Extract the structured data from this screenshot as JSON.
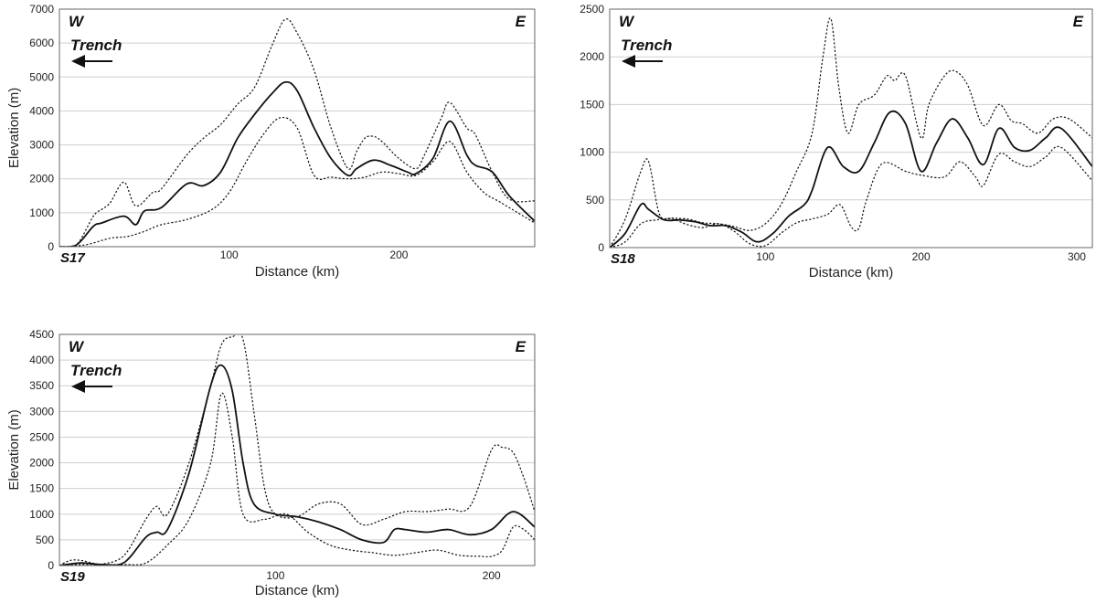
{
  "chart_data": [
    {
      "id": "S17",
      "type": "line",
      "profile_label": "S17",
      "west_label": "W",
      "east_label": "E",
      "trench_label": "Trench",
      "xlabel": "Distance (km)",
      "ylabel": "Elevation (m)",
      "xlim": [
        0,
        280
      ],
      "ylim": [
        0,
        7000
      ],
      "xticks": [
        100,
        200
      ],
      "yticks": [
        0,
        1000,
        2000,
        3000,
        4000,
        5000,
        6000,
        7000
      ],
      "grid": "horizontal",
      "series": [
        {
          "style": "dotted",
          "x": [
            0,
            10,
            20,
            25,
            30,
            38,
            45,
            55,
            60,
            75,
            85,
            95,
            105,
            115,
            125,
            133,
            140,
            150,
            160,
            170,
            175,
            180,
            185,
            190,
            200,
            210,
            215,
            225,
            230,
            240,
            245,
            255,
            265,
            280
          ],
          "y": [
            0,
            50,
            900,
            1100,
            1300,
            1900,
            1200,
            1600,
            1700,
            2700,
            3200,
            3600,
            4200,
            4700,
            5900,
            6700,
            6300,
            5200,
            3500,
            2300,
            2800,
            3200,
            3250,
            3100,
            2600,
            2300,
            2700,
            3800,
            4250,
            3500,
            3300,
            2200,
            1400,
            1350
          ]
        },
        {
          "style": "solid",
          "x": [
            0,
            10,
            20,
            25,
            38,
            45,
            50,
            60,
            75,
            85,
            95,
            105,
            115,
            125,
            133,
            140,
            150,
            160,
            170,
            175,
            185,
            195,
            205,
            210,
            220,
            230,
            240,
            245,
            255,
            265,
            280
          ],
          "y": [
            0,
            50,
            600,
            700,
            900,
            650,
            1050,
            1150,
            1850,
            1800,
            2200,
            3200,
            3900,
            4500,
            4850,
            4600,
            3500,
            2600,
            2100,
            2300,
            2550,
            2400,
            2200,
            2150,
            2600,
            3700,
            2700,
            2400,
            2200,
            1500,
            750
          ]
        },
        {
          "style": "dotted",
          "x": [
            0,
            15,
            30,
            40,
            50,
            60,
            75,
            90,
            100,
            110,
            120,
            130,
            140,
            150,
            160,
            170,
            180,
            190,
            200,
            210,
            220,
            230,
            240,
            250,
            260,
            280
          ],
          "y": [
            0,
            50,
            250,
            300,
            450,
            650,
            800,
            1100,
            1600,
            2500,
            3300,
            3800,
            3500,
            2100,
            2050,
            2000,
            2050,
            2200,
            2150,
            2100,
            2500,
            3100,
            2200,
            1600,
            1300,
            700
          ]
        }
      ]
    },
    {
      "id": "S18",
      "type": "line",
      "profile_label": "S18",
      "west_label": "W",
      "east_label": "E",
      "trench_label": "Trench",
      "xlabel": "Distance (km)",
      "ylabel": "",
      "xlim": [
        0,
        310
      ],
      "ylim": [
        0,
        2500
      ],
      "xticks": [
        100,
        200,
        300
      ],
      "yticks": [
        0,
        500,
        1000,
        1500,
        2000,
        2500
      ],
      "grid": "horizontal",
      "series": [
        {
          "style": "dotted",
          "x": [
            0,
            10,
            20,
            25,
            32,
            40,
            50,
            60,
            70,
            80,
            90,
            100,
            110,
            120,
            130,
            137,
            142,
            147,
            153,
            160,
            170,
            178,
            183,
            190,
            200,
            205,
            215,
            222,
            230,
            240,
            250,
            258,
            265,
            275,
            285,
            295,
            310
          ],
          "y": [
            0,
            300,
            800,
            900,
            350,
            310,
            300,
            260,
            250,
            220,
            180,
            250,
            450,
            800,
            1200,
            2000,
            2400,
            1700,
            1200,
            1500,
            1600,
            1800,
            1750,
            1800,
            1150,
            1500,
            1800,
            1850,
            1700,
            1280,
            1500,
            1330,
            1300,
            1200,
            1350,
            1350,
            1150
          ]
        },
        {
          "style": "solid",
          "x": [
            0,
            10,
            20,
            25,
            35,
            45,
            55,
            65,
            75,
            85,
            95,
            105,
            115,
            125,
            130,
            140,
            150,
            160,
            170,
            180,
            190,
            200,
            210,
            220,
            230,
            240,
            250,
            260,
            270,
            280,
            290,
            310
          ],
          "y": [
            0,
            150,
            450,
            400,
            290,
            290,
            270,
            230,
            230,
            160,
            60,
            150,
            330,
            450,
            600,
            1050,
            850,
            800,
            1100,
            1420,
            1300,
            800,
            1100,
            1350,
            1150,
            870,
            1250,
            1050,
            1020,
            1150,
            1250,
            850
          ]
        },
        {
          "style": "dotted",
          "x": [
            0,
            10,
            20,
            30,
            40,
            50,
            60,
            70,
            80,
            90,
            100,
            110,
            120,
            130,
            140,
            148,
            155,
            160,
            165,
            175,
            190,
            200,
            215,
            225,
            235,
            240,
            250,
            260,
            270,
            280,
            290,
            310
          ],
          "y": [
            0,
            60,
            250,
            290,
            300,
            240,
            210,
            250,
            170,
            40,
            20,
            150,
            260,
            300,
            350,
            450,
            220,
            200,
            500,
            880,
            800,
            760,
            740,
            900,
            740,
            650,
            980,
            900,
            850,
            950,
            1050,
            700
          ]
        }
      ]
    },
    {
      "id": "S19",
      "type": "line",
      "profile_label": "S19",
      "west_label": "W",
      "east_label": "E",
      "trench_label": "Trench",
      "xlabel": "Distance (km)",
      "ylabel": "Elevation (m)",
      "xlim": [
        0,
        220
      ],
      "ylim": [
        0,
        4500
      ],
      "xticks": [
        100,
        200
      ],
      "yticks": [
        0,
        500,
        1000,
        1500,
        2000,
        2500,
        3000,
        3500,
        4000,
        4500
      ],
      "grid": "horizontal",
      "series": [
        {
          "style": "dotted",
          "x": [
            0,
            5,
            10,
            15,
            20,
            30,
            40,
            45,
            50,
            60,
            70,
            75,
            80,
            85,
            90,
            95,
            100,
            110,
            120,
            130,
            140,
            150,
            160,
            170,
            180,
            190,
            200,
            205,
            210,
            215,
            220
          ],
          "y": [
            0,
            100,
            100,
            50,
            30,
            200,
            900,
            1150,
            1000,
            2000,
            3500,
            4300,
            4450,
            4400,
            3000,
            1500,
            1000,
            950,
            1200,
            1200,
            800,
            900,
            1050,
            1050,
            1100,
            1150,
            2250,
            2300,
            2200,
            1700,
            1050
          ]
        },
        {
          "style": "solid",
          "x": [
            0,
            10,
            20,
            30,
            40,
            45,
            50,
            60,
            70,
            75,
            80,
            85,
            90,
            100,
            110,
            120,
            130,
            140,
            150,
            155,
            160,
            170,
            180,
            190,
            200,
            210,
            220
          ],
          "y": [
            0,
            50,
            20,
            60,
            550,
            650,
            700,
            1800,
            3500,
            3900,
            3400,
            2000,
            1200,
            1000,
            950,
            850,
            700,
            500,
            450,
            700,
            700,
            650,
            700,
            600,
            700,
            1050,
            750
          ]
        },
        {
          "style": "dotted",
          "x": [
            0,
            10,
            20,
            30,
            40,
            50,
            60,
            70,
            75,
            80,
            85,
            95,
            105,
            115,
            125,
            135,
            145,
            155,
            165,
            175,
            185,
            195,
            200,
            205,
            210,
            215,
            220
          ],
          "y": [
            0,
            20,
            20,
            20,
            50,
            400,
            900,
            2000,
            3350,
            2500,
            1000,
            900,
            1000,
            650,
            400,
            300,
            250,
            200,
            250,
            300,
            200,
            180,
            180,
            300,
            750,
            700,
            500
          ]
        }
      ]
    }
  ]
}
